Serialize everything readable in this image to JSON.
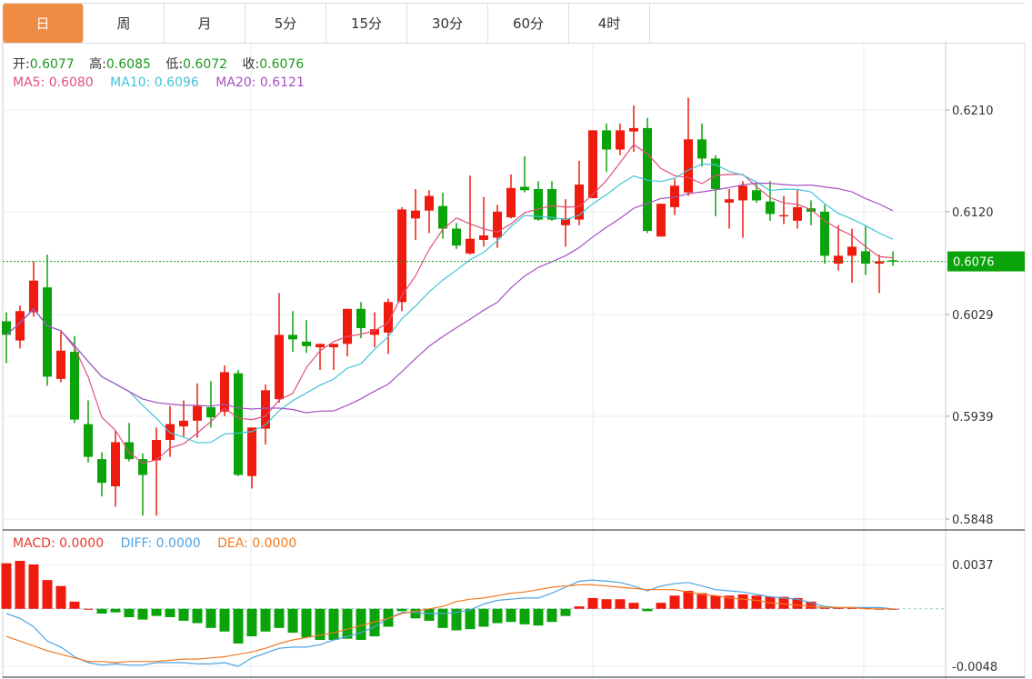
{
  "tabs": [
    {
      "label": "日",
      "active": true
    },
    {
      "label": "周"
    },
    {
      "label": "月"
    },
    {
      "label": "5分"
    },
    {
      "label": "15分"
    },
    {
      "label": "30分"
    },
    {
      "label": "60分"
    },
    {
      "label": "4时"
    }
  ],
  "ohlc_legend": {
    "open_label": "开:",
    "open": "0.6077",
    "high_label": "高:",
    "high": "0.6085",
    "low_label": "低:",
    "low": "0.6072",
    "close_label": "收:",
    "close": "0.6076"
  },
  "ma_legend": {
    "ma5": "MA5: 0.6080",
    "ma10": "MA10: 0.6096",
    "ma20": "MA20: 0.6121"
  },
  "macd_legend": {
    "macd": "MACD: 0.0000",
    "diff": "DIFF: 0.0000",
    "dea": "DEA: 0.0000"
  },
  "price_axis": [
    "0.6210",
    "0.6120",
    "0.6029",
    "0.5939",
    "0.5848"
  ],
  "macd_axis": [
    "0.0037",
    "-0.0048"
  ],
  "last_price": "0.6076",
  "colors": {
    "up": "#ee1b0e",
    "down": "#0aa30a",
    "ma5": "#e0507e",
    "ma10": "#42c3d6",
    "ma20": "#a552c2",
    "diff": "#4fa3e3",
    "dea": "#f07a22",
    "accent": "#f08c44"
  },
  "chart_data": {
    "type": "candlestick",
    "price_range": [
      0.5848,
      0.621
    ],
    "candles": [
      [
        0.6023,
        0.6031,
        0.5986,
        0.6011
      ],
      [
        0.6006,
        0.6037,
        0.5999,
        0.6032
      ],
      [
        0.6031,
        0.6076,
        0.6027,
        0.6059
      ],
      [
        0.6053,
        0.6082,
        0.5966,
        0.5974
      ],
      [
        0.5972,
        0.6014,
        0.5969,
        0.5997
      ],
      [
        0.5996,
        0.601,
        0.5933,
        0.5936
      ],
      [
        0.5932,
        0.5953,
        0.5898,
        0.5903
      ],
      [
        0.5901,
        0.5907,
        0.5868,
        0.588
      ],
      [
        0.5877,
        0.5926,
        0.5859,
        0.5916
      ],
      [
        0.5916,
        0.5933,
        0.5899,
        0.5901
      ],
      [
        0.5901,
        0.5906,
        0.5851,
        0.5887
      ],
      [
        0.59,
        0.5929,
        0.5851,
        0.5918
      ],
      [
        0.5918,
        0.5948,
        0.5903,
        0.5932
      ],
      [
        0.593,
        0.5953,
        0.5921,
        0.5935
      ],
      [
        0.5935,
        0.5968,
        0.592,
        0.5948
      ],
      [
        0.5947,
        0.597,
        0.5929,
        0.5938
      ],
      [
        0.5943,
        0.5984,
        0.5939,
        0.5978
      ],
      [
        0.5977,
        0.598,
        0.5886,
        0.5887
      ],
      [
        0.5886,
        0.5929,
        0.5875,
        0.5929
      ],
      [
        0.5928,
        0.5967,
        0.5914,
        0.5962
      ],
      [
        0.5954,
        0.6048,
        0.5951,
        0.6011
      ],
      [
        0.6011,
        0.6032,
        0.5996,
        0.6007
      ],
      [
        0.6005,
        0.6024,
        0.5995,
        0.6001
      ],
      [
        0.6,
        0.6003,
        0.598,
        0.6003
      ],
      [
        0.6,
        0.6003,
        0.598,
        0.6003
      ],
      [
        0.6003,
        0.6034,
        0.5992,
        0.6034
      ],
      [
        0.6034,
        0.604,
        0.6008,
        0.6017
      ],
      [
        0.6011,
        0.6031,
        0.6,
        0.6016
      ],
      [
        0.6013,
        0.6043,
        0.5994,
        0.604
      ],
      [
        0.604,
        0.6124,
        0.6032,
        0.6122
      ],
      [
        0.6114,
        0.614,
        0.6095,
        0.6121
      ],
      [
        0.6121,
        0.6139,
        0.6101,
        0.6134
      ],
      [
        0.6125,
        0.6137,
        0.6096,
        0.6105
      ],
      [
        0.6105,
        0.611,
        0.6087,
        0.609
      ],
      [
        0.6083,
        0.6152,
        0.6082,
        0.6096
      ],
      [
        0.6095,
        0.6133,
        0.6089,
        0.6099
      ],
      [
        0.6097,
        0.6126,
        0.6088,
        0.612
      ],
      [
        0.6115,
        0.6153,
        0.6114,
        0.6141
      ],
      [
        0.6142,
        0.6169,
        0.6137,
        0.6139
      ],
      [
        0.614,
        0.6147,
        0.6112,
        0.6113
      ],
      [
        0.614,
        0.6147,
        0.6112,
        0.6113
      ],
      [
        0.6108,
        0.6131,
        0.6089,
        0.6114
      ],
      [
        0.6113,
        0.6165,
        0.6108,
        0.6144
      ],
      [
        0.6132,
        0.6192,
        0.6132,
        0.6192
      ],
      [
        0.6192,
        0.6198,
        0.6155,
        0.6175
      ],
      [
        0.6175,
        0.6198,
        0.617,
        0.6192
      ],
      [
        0.6191,
        0.6214,
        0.6173,
        0.6194
      ],
      [
        0.6194,
        0.6203,
        0.6101,
        0.6103
      ],
      [
        0.6098,
        0.6127,
        0.6098,
        0.6127
      ],
      [
        0.6124,
        0.6149,
        0.6117,
        0.6143
      ],
      [
        0.6137,
        0.6221,
        0.6134,
        0.6184
      ],
      [
        0.6184,
        0.6198,
        0.616,
        0.6167
      ],
      [
        0.6167,
        0.617,
        0.6116,
        0.614
      ],
      [
        0.6128,
        0.614,
        0.6105,
        0.6131
      ],
      [
        0.613,
        0.6147,
        0.6097,
        0.6143
      ],
      [
        0.6139,
        0.6146,
        0.6128,
        0.613
      ],
      [
        0.6129,
        0.6147,
        0.6112,
        0.6118
      ],
      [
        0.6116,
        0.6134,
        0.6109,
        0.6117
      ],
      [
        0.6112,
        0.6139,
        0.6105,
        0.6124
      ],
      [
        0.6123,
        0.613,
        0.6108,
        0.612
      ],
      [
        0.612,
        0.6126,
        0.6074,
        0.6081
      ],
      [
        0.6074,
        0.6108,
        0.6068,
        0.6081
      ],
      [
        0.6081,
        0.6105,
        0.6057,
        0.6089
      ],
      [
        0.6085,
        0.6107,
        0.6064,
        0.6074
      ],
      [
        0.6074,
        0.6082,
        0.6048,
        0.6076
      ],
      [
        0.6077,
        0.6085,
        0.6072,
        0.6076
      ]
    ],
    "macd_range": [
      -0.0048,
      0.0037
    ],
    "macd_hist": [
      0.0038,
      0.004,
      0.0037,
      0.0024,
      0.0019,
      0.0006,
      0.0,
      -0.0004,
      -0.0003,
      -0.0007,
      -0.0009,
      -0.0006,
      -0.0007,
      -0.001,
      -0.0012,
      -0.0016,
      -0.0019,
      -0.0029,
      -0.0023,
      -0.0019,
      -0.0016,
      -0.002,
      -0.0024,
      -0.0026,
      -0.0026,
      -0.0025,
      -0.0026,
      -0.0023,
      -0.0015,
      -0.0002,
      -0.0008,
      -0.001,
      -0.0016,
      -0.0018,
      -0.0017,
      -0.0015,
      -0.0012,
      -0.0011,
      -0.0013,
      -0.0014,
      -0.0011,
      -0.0006,
      0.0002,
      0.0009,
      0.0008,
      0.0008,
      0.0005,
      -0.0002,
      0.0005,
      0.0011,
      0.0015,
      0.0013,
      0.0011,
      0.0011,
      0.0012,
      0.0011,
      0.001,
      0.001,
      0.0009,
      0.0006,
      0.0001,
      0.0001,
      0.0001,
      0.0001,
      0.0,
      0.0
    ],
    "diff": [
      -0.0004,
      -0.0008,
      -0.0015,
      -0.0027,
      -0.0032,
      -0.004,
      -0.0045,
      -0.0047,
      -0.0046,
      -0.0047,
      -0.0047,
      -0.0045,
      -0.0045,
      -0.0045,
      -0.0046,
      -0.0046,
      -0.0045,
      -0.0048,
      -0.0041,
      -0.0037,
      -0.0033,
      -0.0032,
      -0.0032,
      -0.003,
      -0.0026,
      -0.0023,
      -0.002,
      -0.0015,
      -0.0008,
      -0.0003,
      -0.0003,
      -0.0004,
      -0.0004,
      -0.0003,
      -0.0001,
      0.0004,
      0.0007,
      0.0008,
      0.0009,
      0.0009,
      0.0013,
      0.0018,
      0.0023,
      0.0024,
      0.0023,
      0.0022,
      0.0019,
      0.0015,
      0.0019,
      0.0021,
      0.0022,
      0.0019,
      0.0016,
      0.0015,
      0.0014,
      0.0012,
      0.001,
      0.0009,
      0.0008,
      0.0005,
      0.0002,
      0.0001,
      0.0001,
      0.0001,
      0.0001,
      0.0
    ],
    "dea": [
      -0.0023,
      -0.0027,
      -0.0031,
      -0.0035,
      -0.0038,
      -0.0041,
      -0.0044,
      -0.0044,
      -0.0045,
      -0.0044,
      -0.0044,
      -0.0044,
      -0.0043,
      -0.0042,
      -0.0042,
      -0.0041,
      -0.004,
      -0.0038,
      -0.0036,
      -0.0033,
      -0.0029,
      -0.0026,
      -0.0024,
      -0.0022,
      -0.002,
      -0.0017,
      -0.0014,
      -0.0011,
      -0.0008,
      -0.0004,
      -0.0002,
      0.0,
      0.0002,
      0.0006,
      0.0008,
      0.0009,
      0.0011,
      0.0013,
      0.0014,
      0.0016,
      0.0018,
      0.0019,
      0.002,
      0.002,
      0.0019,
      0.0018,
      0.0017,
      0.0016,
      0.0016,
      0.0016,
      0.0014,
      0.0012,
      0.0011,
      0.0009,
      0.0008,
      0.0007,
      0.0005,
      0.0004,
      0.0003,
      0.0002,
      0.0001,
      0.0001,
      0.0001,
      0.0,
      0.0,
      0.0
    ]
  }
}
